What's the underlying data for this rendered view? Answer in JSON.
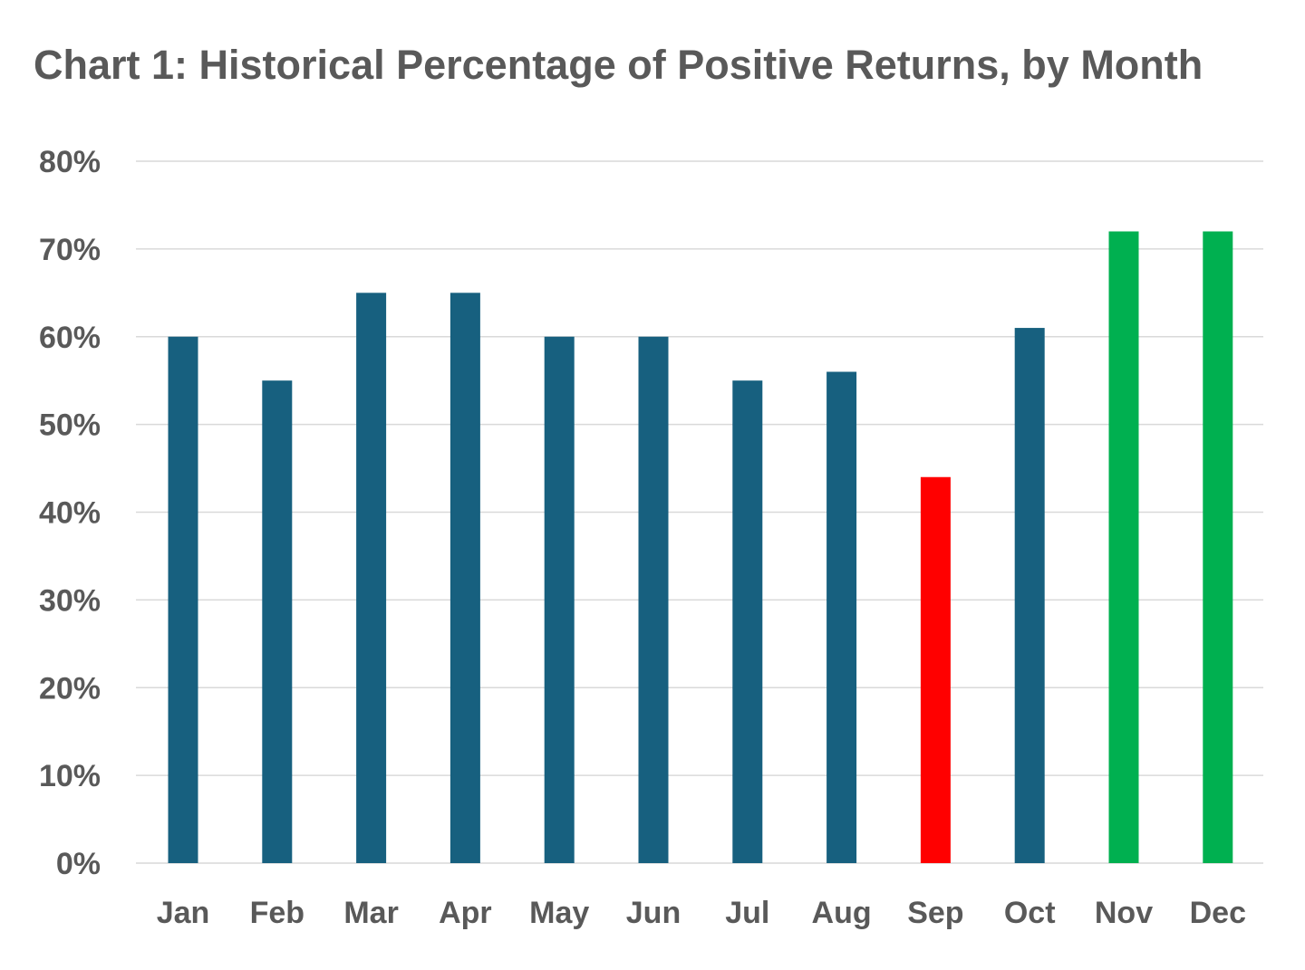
{
  "chart_data": {
    "type": "bar",
    "title": "Chart 1: Historical Percentage of Positive Returns, by Month",
    "xlabel": "",
    "ylabel": "",
    "categories": [
      "Jan",
      "Feb",
      "Mar",
      "Apr",
      "May",
      "Jun",
      "Jul",
      "Aug",
      "Sep",
      "Oct",
      "Nov",
      "Dec"
    ],
    "values": [
      60,
      55,
      65,
      65,
      60,
      60,
      55,
      56,
      44,
      61,
      72,
      72
    ],
    "value_unit": "%",
    "bar_colors": [
      "#17607f",
      "#17607f",
      "#17607f",
      "#17607f",
      "#17607f",
      "#17607f",
      "#17607f",
      "#17607f",
      "#ff0000",
      "#17607f",
      "#00b050",
      "#00b050"
    ],
    "ylim": [
      0,
      80
    ],
    "y_ticks": [
      "0%",
      "10%",
      "20%",
      "30%",
      "40%",
      "50%",
      "60%",
      "70%",
      "80%"
    ],
    "grid": true,
    "legend": "none"
  }
}
